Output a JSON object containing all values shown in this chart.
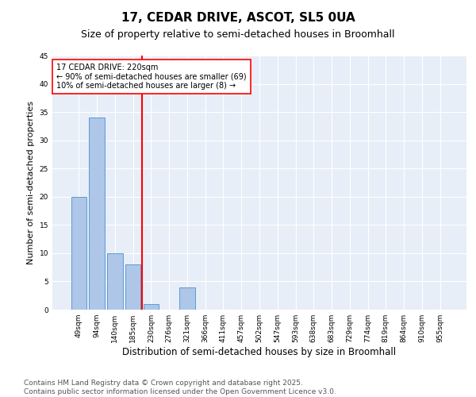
{
  "title": "17, CEDAR DRIVE, ASCOT, SL5 0UA",
  "subtitle": "Size of property relative to semi-detached houses in Broomhall",
  "xlabel": "Distribution of semi-detached houses by size in Broomhall",
  "ylabel": "Number of semi-detached properties",
  "categories": [
    "49sqm",
    "94sqm",
    "140sqm",
    "185sqm",
    "230sqm",
    "276sqm",
    "321sqm",
    "366sqm",
    "411sqm",
    "457sqm",
    "502sqm",
    "547sqm",
    "593sqm",
    "638sqm",
    "683sqm",
    "729sqm",
    "774sqm",
    "819sqm",
    "864sqm",
    "910sqm",
    "955sqm"
  ],
  "values": [
    20,
    34,
    10,
    8,
    1,
    0,
    4,
    0,
    0,
    0,
    0,
    0,
    0,
    0,
    0,
    0,
    0,
    0,
    0,
    0,
    0
  ],
  "bar_color": "#aec6e8",
  "bar_edgecolor": "#5b9bd5",
  "vline_x_index": 4,
  "vline_color": "red",
  "annotation_title": "17 CEDAR DRIVE: 220sqm",
  "annotation_line1": "← 90% of semi-detached houses are smaller (69)",
  "annotation_line2": "10% of semi-detached houses are larger (8) →",
  "annotation_box_edgecolor": "red",
  "ylim": [
    0,
    45
  ],
  "yticks": [
    0,
    5,
    10,
    15,
    20,
    25,
    30,
    35,
    40,
    45
  ],
  "background_color": "#e8eef7",
  "footer": "Contains HM Land Registry data © Crown copyright and database right 2025.\nContains public sector information licensed under the Open Government Licence v3.0.",
  "title_fontsize": 11,
  "subtitle_fontsize": 9,
  "xlabel_fontsize": 8.5,
  "ylabel_fontsize": 8,
  "annotation_fontsize": 7,
  "footer_fontsize": 6.5,
  "tick_fontsize": 6.5
}
